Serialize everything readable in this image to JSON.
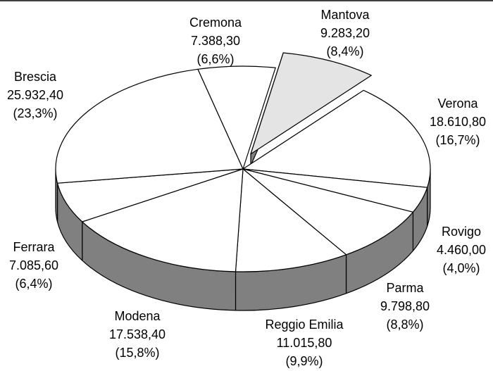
{
  "chart_data": {
    "type": "pie3d",
    "categories": [
      "Mantova",
      "Verona",
      "Rovigo",
      "Parma",
      "Reggio Emilia",
      "Modena",
      "Ferrara",
      "Brescia",
      "Cremona"
    ],
    "values": [
      9283.2,
      18610.8,
      4460,
      9798.8,
      11015.8,
      17538.4,
      7085.6,
      25932.4,
      7388.3
    ],
    "value_labels": [
      "9.283,20",
      "18.610,80",
      "4.460,00",
      "9.798,80",
      "11.015,80",
      "17.538,40",
      "7.085,60",
      "25.932,40",
      "7.388,30"
    ],
    "percentages": [
      8.4,
      16.7,
      4.0,
      8.8,
      9.9,
      15.8,
      6.4,
      23.3,
      6.6
    ],
    "percentage_labels": [
      "(8,4%)",
      "(16,7%)",
      "(4,0%)",
      "(8,8%)",
      "(9,9%)",
      "(15,8%)",
      "(6,4%)",
      "(23,3%)",
      "(6,6%)"
    ],
    "colors": [
      "#e4e4e4",
      "#ffffff",
      "#ffffff",
      "#ffffff",
      "#ffffff",
      "#ffffff",
      "#ffffff",
      "#ffffff",
      "#ffffff"
    ],
    "side_color": "#808080",
    "explode": [
      true,
      false,
      false,
      false,
      false,
      false,
      false,
      false,
      false
    ]
  }
}
